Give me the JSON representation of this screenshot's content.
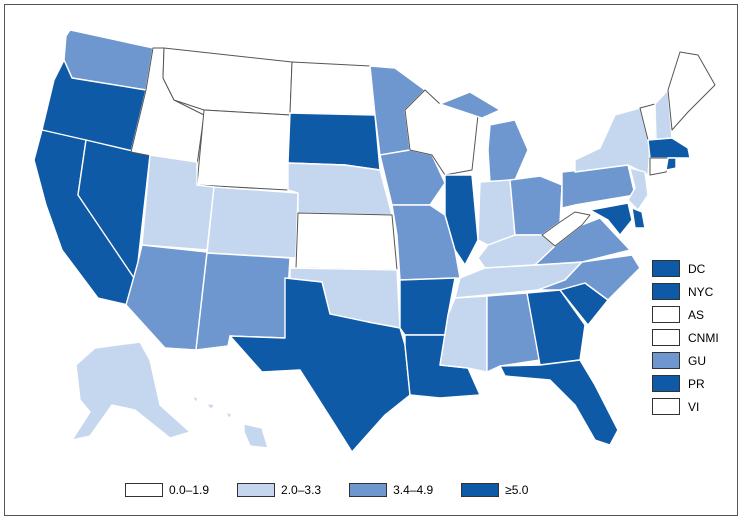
{
  "colors": {
    "0": "#ffffff",
    "1": "#c5d7ef",
    "2": "#6e96cf",
    "3": "#0e5aa6"
  },
  "legend": [
    {
      "label": "0.0–1.9",
      "class": 0
    },
    {
      "label": "2.0–3.3",
      "class": 1
    },
    {
      "label": "3.4–4.9",
      "class": 2
    },
    {
      "label": "≥5.0",
      "class": 3
    }
  ],
  "territories": [
    {
      "label": "DC",
      "class": 3
    },
    {
      "label": "NYC",
      "class": 3
    },
    {
      "label": "AS",
      "class": 0
    },
    {
      "label": "CNMI",
      "class": 0
    },
    {
      "label": "GU",
      "class": 2
    },
    {
      "label": "PR",
      "class": 3
    },
    {
      "label": "VI",
      "class": 0
    }
  ],
  "states": {
    "WA": 2,
    "OR": 3,
    "CA": 3,
    "NV": 3,
    "ID": 0,
    "MT": 0,
    "WY": 0,
    "UT": 1,
    "AZ": 2,
    "CO": 1,
    "NM": 2,
    "ND": 0,
    "SD": 3,
    "NE": 1,
    "KS": 0,
    "OK": 1,
    "TX": 3,
    "MN": 2,
    "IA": 2,
    "MO": 2,
    "AR": 3,
    "LA": 3,
    "WI": 0,
    "IL": 3,
    "MI": 2,
    "IN": 1,
    "OH": 2,
    "KY": 1,
    "TN": 1,
    "MS": 1,
    "AL": 2,
    "GA": 3,
    "FL": 3,
    "SC": 3,
    "NC": 2,
    "VA": 2,
    "WV": 0,
    "PA": 2,
    "NY": 1,
    "VT": 0,
    "NH": 1,
    "ME": 0,
    "MA": 3,
    "RI": 3,
    "CT": 0,
    "NJ": 1,
    "DE": 3,
    "MD": 3,
    "AK": 1,
    "HI": 1
  }
}
